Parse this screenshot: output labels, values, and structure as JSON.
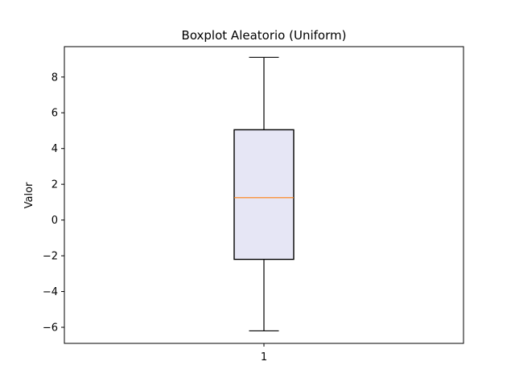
{
  "chart_data": {
    "type": "box",
    "title": "Boxplot Aleatorio (Uniform)",
    "xlabel": "",
    "ylabel": "Valor",
    "categories": [
      "1"
    ],
    "ylim": [
      -6.9,
      9.7
    ],
    "yticks": [
      -6,
      -4,
      -2,
      0,
      2,
      4,
      6,
      8
    ],
    "ytick_labels": [
      "−6",
      "−4",
      "−2",
      "0",
      "2",
      "4",
      "6",
      "8"
    ],
    "grid": false,
    "boxes": [
      {
        "category": "1",
        "whisker_low": -6.2,
        "q1": -2.2,
        "median": 1.25,
        "q3": 5.05,
        "whisker_high": 9.1
      }
    ],
    "colors": {
      "box_fill": "#e6e6f5",
      "box_edge": "#000000",
      "median": "#ff7f0e",
      "whisker": "#000000"
    }
  }
}
